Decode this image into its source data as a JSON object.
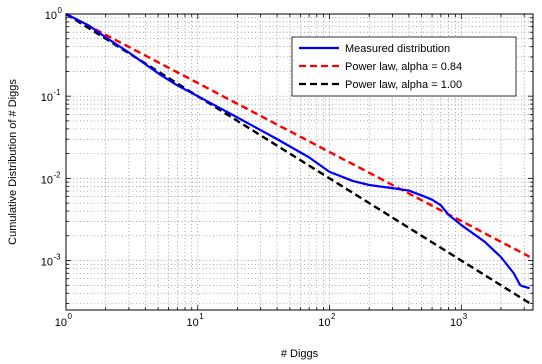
{
  "chart_data": {
    "type": "line",
    "title": "",
    "xlabel": "# Diggs",
    "ylabel": "Cumulative Distribution of # Diggs",
    "xscale": "log",
    "yscale": "log",
    "xlim": [
      1,
      3500
    ],
    "ylim": [
      0.00025,
      1
    ],
    "grid": true,
    "legend_position": "top-right",
    "x_ticks": [
      {
        "base": "10",
        "exp": "0",
        "value": 1
      },
      {
        "base": "10",
        "exp": "1",
        "value": 10
      },
      {
        "base": "10",
        "exp": "2",
        "value": 100
      },
      {
        "base": "10",
        "exp": "3",
        "value": 1000
      }
    ],
    "y_ticks": [
      {
        "base": "10",
        "exp": "0",
        "value": 1
      },
      {
        "base": "10",
        "exp": "-1",
        "value": 0.1
      },
      {
        "base": "10",
        "exp": "-2",
        "value": 0.01
      },
      {
        "base": "10",
        "exp": "-3",
        "value": 0.001
      }
    ],
    "series": [
      {
        "name": "Measured distribution",
        "color": "#0000ff",
        "style": "solid",
        "points": [
          [
            1,
            1
          ],
          [
            1.5,
            0.72
          ],
          [
            2,
            0.52
          ],
          [
            3,
            0.34
          ],
          [
            5,
            0.19
          ],
          [
            7,
            0.135
          ],
          [
            10,
            0.1
          ],
          [
            20,
            0.055
          ],
          [
            40,
            0.03
          ],
          [
            70,
            0.018
          ],
          [
            100,
            0.012
          ],
          [
            150,
            0.0093
          ],
          [
            200,
            0.0083
          ],
          [
            300,
            0.0076
          ],
          [
            400,
            0.0071
          ],
          [
            500,
            0.0062
          ],
          [
            600,
            0.0055
          ],
          [
            700,
            0.0047
          ],
          [
            800,
            0.0036
          ],
          [
            1000,
            0.0027
          ],
          [
            1500,
            0.0017
          ],
          [
            2000,
            0.0011
          ],
          [
            2500,
            0.0007
          ],
          [
            2800,
            0.0005
          ],
          [
            3000,
            0.00048
          ],
          [
            3300,
            0.00046
          ]
        ]
      },
      {
        "name": "Power law, alpha = 0.84",
        "color": "#ff0000",
        "style": "dashed",
        "alpha": 0.84,
        "points": [
          [
            1,
            1
          ],
          [
            3300,
            0.00111
          ]
        ]
      },
      {
        "name": "Power law, alpha = 1.00",
        "color": "#000000",
        "style": "dashed",
        "alpha": 1.0,
        "points": [
          [
            1,
            1
          ],
          [
            3300,
            0.000303
          ]
        ]
      }
    ]
  }
}
